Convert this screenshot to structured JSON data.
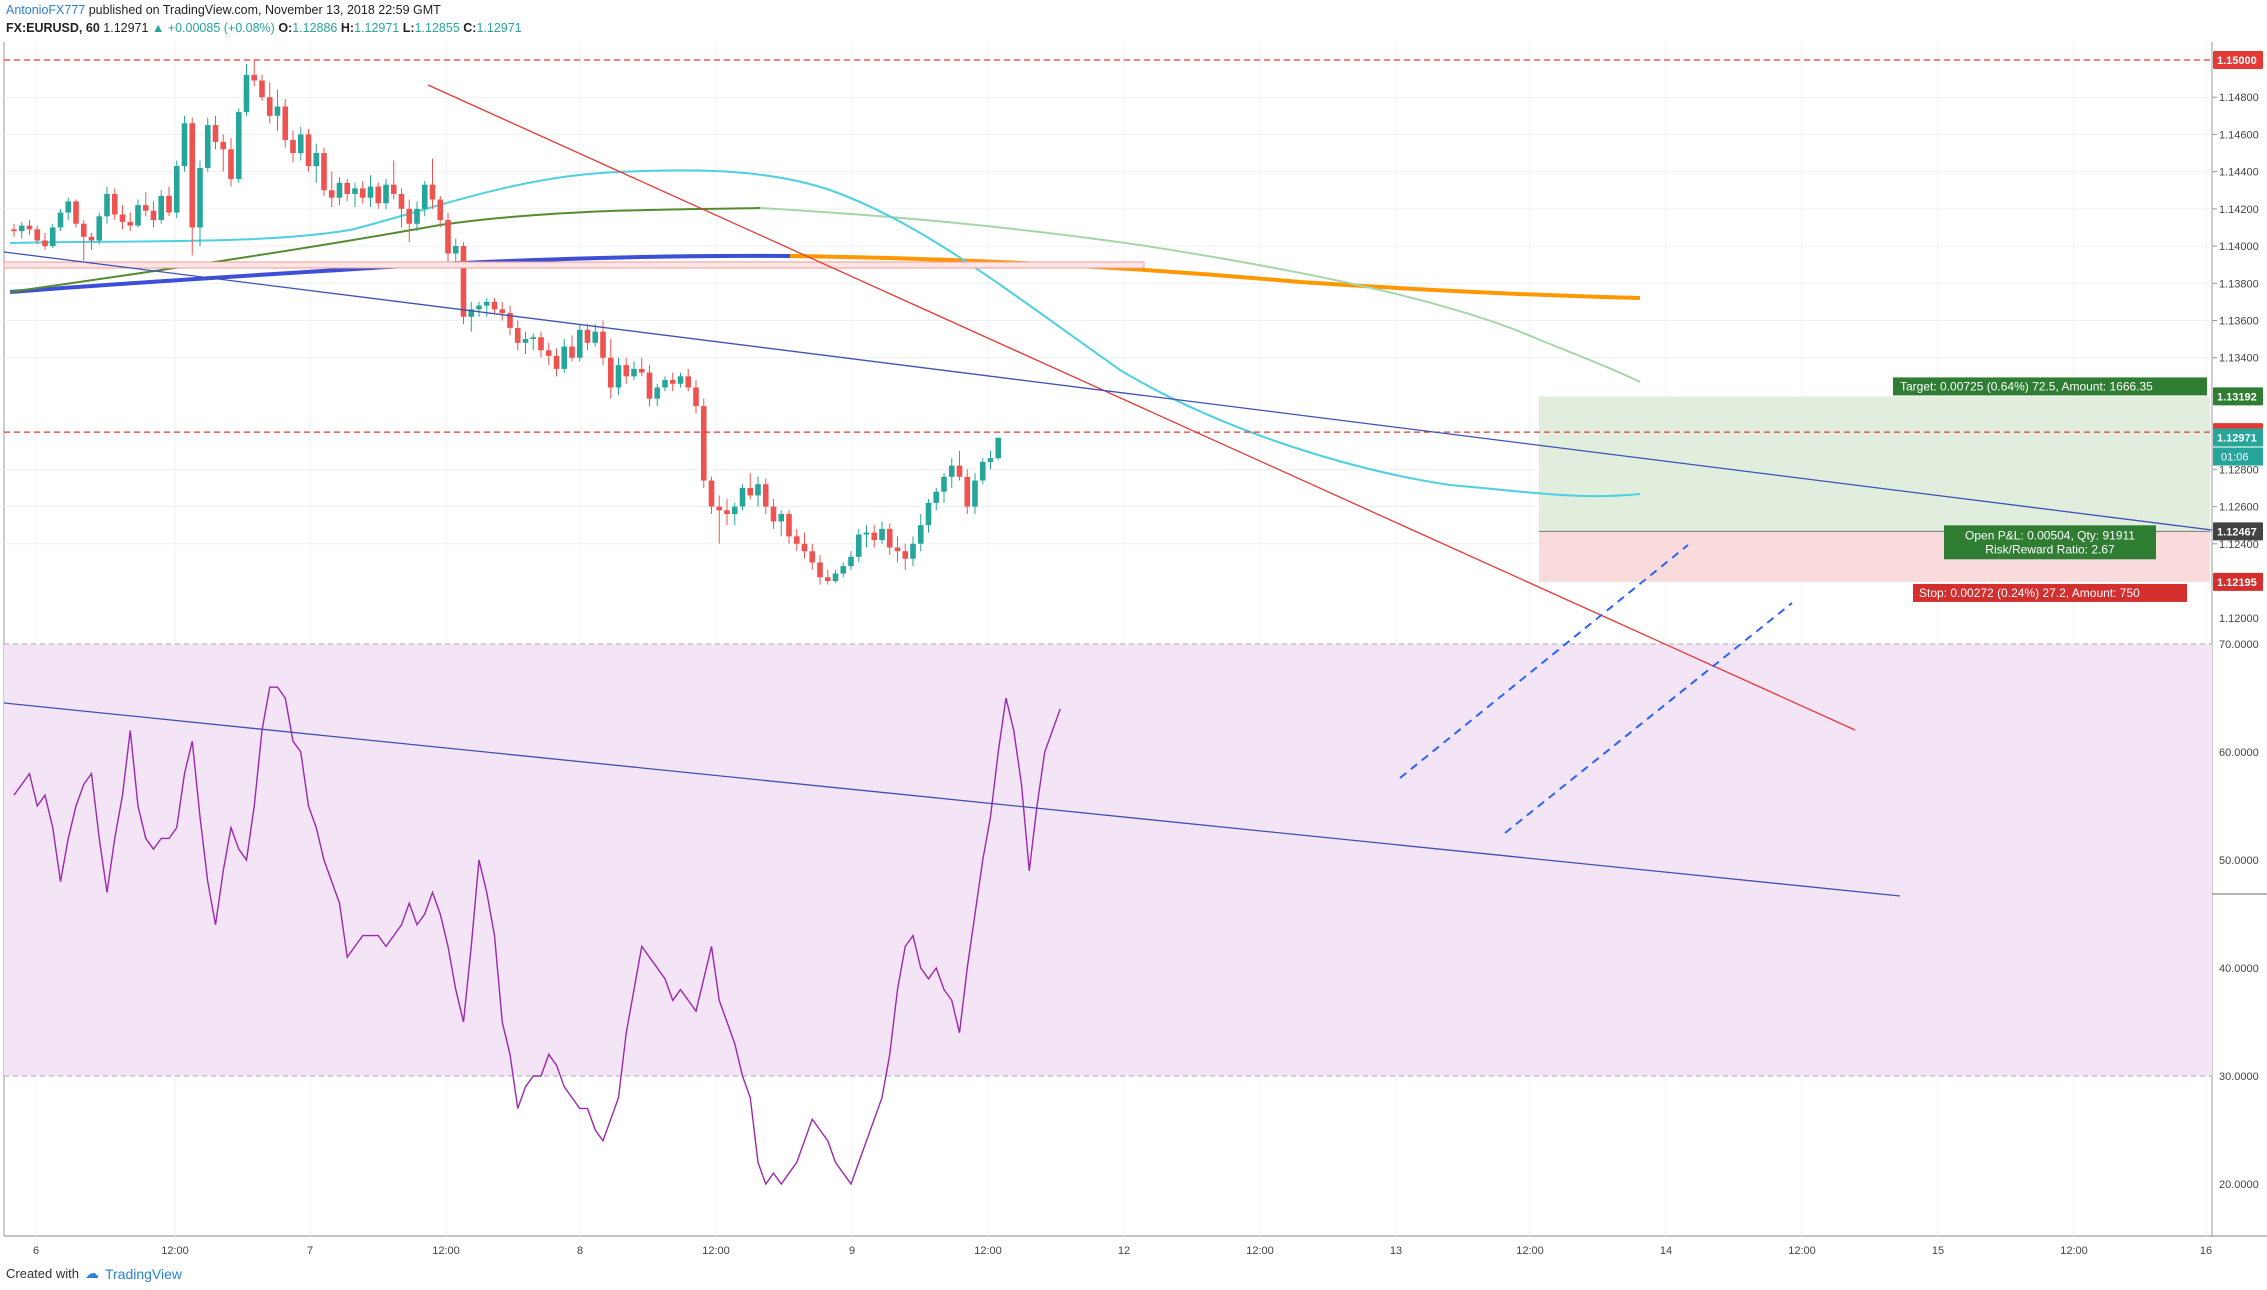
{
  "header": {
    "author": "AntonioFX777",
    "published": "published on TradingView.com, November 13, 2018 22:59 GMT",
    "symbol": "FX:EURUSD, 60",
    "last": "1.12971",
    "change_arrow": "▲",
    "change": "+0.00085 (+0.08%)",
    "o_label": "O:",
    "o": "1.12886",
    "h_label": "H:",
    "h": "1.12971",
    "l_label": "L:",
    "l": "1.12855",
    "c_label": "C:",
    "c": "1.12971"
  },
  "price_axis": {
    "ticks": [
      "1.14800",
      "1.14600",
      "1.14400",
      "1.14200",
      "1.14000",
      "1.13800",
      "1.13600",
      "1.13400",
      "1.12800",
      "1.12600",
      "1.12400"
    ],
    "tags": {
      "level_1_15000": "1.15000",
      "target_price": "1.13192",
      "level_1_13000": "1.13000",
      "last_price": "1.12971",
      "countdown": "01:06",
      "entry_price": "1.12467",
      "stop_price": "1.12195"
    },
    "partial_bottom": "1.12000"
  },
  "time_axis": [
    "6",
    "12:00",
    "7",
    "12:00",
    "8",
    "12:00",
    "9",
    "12:00",
    "12",
    "12:00",
    "13",
    "12:00",
    "14",
    "12:00",
    "15",
    "12:00",
    "16"
  ],
  "rsi_axis": [
    "70.0000",
    "60.0000",
    "50.0000",
    "40.0000",
    "30.0000",
    "20.0000"
  ],
  "position": {
    "target_label": "Target: 0.00725 (0.64%) 72.5, Amount: 1666.35",
    "open_pnl": "Open P&L: 0.00504, Qty: 91911",
    "risk_reward": "Risk/Reward Ratio: 2.67",
    "stop_label": "Stop: 0.00272 (0.24%) 27.2, Amount: 750"
  },
  "footer": {
    "created_with": "Created with",
    "brand": "TradingView"
  },
  "colors": {
    "bull": "#26a69a",
    "bear": "#ef5350",
    "resistance": "#e53935",
    "trend_blue": "#3f51b5",
    "ema_cyan": "#4dd0e1",
    "sma_orange": "#ff9800",
    "sma_green": "#a5d6a7",
    "sma_dark": "#558b2f",
    "rsi_line": "#9c27b0",
    "rsi_band": "#f3e5f5",
    "target_zone": "#dcebd8",
    "stop_zone": "#f8d7d7"
  },
  "chart_data": {
    "type": "candlestick",
    "symbol": "FX:EURUSD",
    "interval": "60",
    "y_range": [
      1.1197,
      1.1516
    ],
    "horizontal_levels": [
      1.15,
      1.13
    ],
    "position": {
      "entry": 1.12467,
      "target": 1.13192,
      "stop": 1.12195,
      "last": 1.12971
    },
    "candles_ohlc": [
      [
        1.1409,
        1.1412,
        1.1405,
        1.1408
      ],
      [
        1.1408,
        1.1413,
        1.1404,
        1.1411
      ],
      [
        1.1411,
        1.1414,
        1.1406,
        1.1409
      ],
      [
        1.1409,
        1.1411,
        1.1401,
        1.1403
      ],
      [
        1.1403,
        1.1407,
        1.1398,
        1.14
      ],
      [
        1.14,
        1.1412,
        1.1399,
        1.141
      ],
      [
        1.141,
        1.142,
        1.1408,
        1.1418
      ],
      [
        1.1418,
        1.1426,
        1.1414,
        1.1424
      ],
      [
        1.1424,
        1.1425,
        1.141,
        1.1412
      ],
      [
        1.1412,
        1.1414,
        1.1392,
        1.1405
      ],
      [
        1.1405,
        1.1407,
        1.1398,
        1.1403
      ],
      [
        1.1403,
        1.1418,
        1.1401,
        1.1416
      ],
      [
        1.1416,
        1.1432,
        1.1412,
        1.1428
      ],
      [
        1.1428,
        1.1431,
        1.1414,
        1.1417
      ],
      [
        1.1417,
        1.1422,
        1.1409,
        1.1413
      ],
      [
        1.1413,
        1.1418,
        1.1408,
        1.1411
      ],
      [
        1.1411,
        1.1425,
        1.141,
        1.1422
      ],
      [
        1.1422,
        1.1429,
        1.1416,
        1.1419
      ],
      [
        1.1419,
        1.1424,
        1.141,
        1.1414
      ],
      [
        1.1414,
        1.143,
        1.1412,
        1.1427
      ],
      [
        1.1427,
        1.1432,
        1.1416,
        1.1418
      ],
      [
        1.1418,
        1.1446,
        1.1415,
        1.1443
      ],
      [
        1.1443,
        1.147,
        1.144,
        1.1466
      ],
      [
        1.1466,
        1.1469,
        1.1395,
        1.141
      ],
      [
        1.141,
        1.1446,
        1.14,
        1.1442
      ],
      [
        1.1442,
        1.1469,
        1.144,
        1.1465
      ],
      [
        1.1465,
        1.147,
        1.1452,
        1.1456
      ],
      [
        1.1456,
        1.146,
        1.144,
        1.1452
      ],
      [
        1.1452,
        1.1458,
        1.1432,
        1.1436
      ],
      [
        1.1436,
        1.1474,
        1.1434,
        1.1472
      ],
      [
        1.1472,
        1.1498,
        1.147,
        1.1492
      ],
      [
        1.1492,
        1.15,
        1.1486,
        1.1489
      ],
      [
        1.1489,
        1.1492,
        1.1478,
        1.148
      ],
      [
        1.148,
        1.1488,
        1.1466,
        1.147
      ],
      [
        1.147,
        1.1484,
        1.1462,
        1.1475
      ],
      [
        1.1475,
        1.1479,
        1.1453,
        1.1457
      ],
      [
        1.1457,
        1.1462,
        1.1445,
        1.145
      ],
      [
        1.145,
        1.1464,
        1.1446,
        1.146
      ],
      [
        1.146,
        1.1463,
        1.144,
        1.1443
      ],
      [
        1.1443,
        1.1455,
        1.1434,
        1.145
      ],
      [
        1.145,
        1.1453,
        1.1427,
        1.143
      ],
      [
        1.143,
        1.144,
        1.1421,
        1.1426
      ],
      [
        1.1426,
        1.1437,
        1.1422,
        1.1434
      ],
      [
        1.1434,
        1.1436,
        1.1424,
        1.1428
      ],
      [
        1.1428,
        1.1434,
        1.1421,
        1.1431
      ],
      [
        1.1431,
        1.1435,
        1.1423,
        1.1426
      ],
      [
        1.1426,
        1.1438,
        1.1421,
        1.1432
      ],
      [
        1.1432,
        1.1434,
        1.142,
        1.1423
      ],
      [
        1.1423,
        1.1436,
        1.142,
        1.1433
      ],
      [
        1.1433,
        1.1446,
        1.1425,
        1.1428
      ],
      [
        1.1428,
        1.1431,
        1.141,
        1.142
      ],
      [
        1.142,
        1.1425,
        1.1402,
        1.1412
      ],
      [
        1.1412,
        1.1424,
        1.1408,
        1.142
      ],
      [
        1.142,
        1.1435,
        1.1416,
        1.1433
      ],
      [
        1.1433,
        1.1447,
        1.142,
        1.1425
      ],
      [
        1.1425,
        1.1427,
        1.141,
        1.1414
      ],
      [
        1.1414,
        1.1418,
        1.139,
        1.1396
      ],
      [
        1.1396,
        1.1404,
        1.1388,
        1.14
      ],
      [
        1.14,
        1.1402,
        1.1358,
        1.1362
      ],
      [
        1.1362,
        1.137,
        1.1354,
        1.1366
      ],
      [
        1.1366,
        1.137,
        1.1362,
        1.1368
      ],
      [
        1.1368,
        1.1372,
        1.1362,
        1.137
      ],
      [
        1.137,
        1.1372,
        1.1364,
        1.1366
      ],
      [
        1.1366,
        1.137,
        1.136,
        1.1364
      ],
      [
        1.1364,
        1.1368,
        1.1352,
        1.1356
      ],
      [
        1.1356,
        1.136,
        1.1344,
        1.1348
      ],
      [
        1.1348,
        1.1354,
        1.1342,
        1.135
      ],
      [
        1.135,
        1.1353,
        1.1344,
        1.1351
      ],
      [
        1.1351,
        1.1354,
        1.134,
        1.1344
      ],
      [
        1.1344,
        1.1348,
        1.1336,
        1.1341
      ],
      [
        1.1341,
        1.1345,
        1.133,
        1.1334
      ],
      [
        1.1334,
        1.135,
        1.1332,
        1.1346
      ],
      [
        1.1346,
        1.1352,
        1.1338,
        1.134
      ],
      [
        1.134,
        1.1358,
        1.1338,
        1.1355
      ],
      [
        1.1355,
        1.1358,
        1.1344,
        1.1348
      ],
      [
        1.1348,
        1.1358,
        1.1346,
        1.1354
      ],
      [
        1.1354,
        1.136,
        1.1336,
        1.134
      ],
      [
        1.134,
        1.135,
        1.1318,
        1.1324
      ],
      [
        1.1324,
        1.134,
        1.132,
        1.1336
      ],
      [
        1.1336,
        1.134,
        1.1326,
        1.133
      ],
      [
        1.133,
        1.1338,
        1.1328,
        1.1334
      ],
      [
        1.1334,
        1.134,
        1.133,
        1.1332
      ],
      [
        1.1332,
        1.1336,
        1.1314,
        1.1318
      ],
      [
        1.1318,
        1.1326,
        1.1314,
        1.1324
      ],
      [
        1.1324,
        1.133,
        1.1322,
        1.1328
      ],
      [
        1.1328,
        1.1332,
        1.1322,
        1.1326
      ],
      [
        1.1326,
        1.1332,
        1.1324,
        1.133
      ],
      [
        1.133,
        1.1334,
        1.1322,
        1.1324
      ],
      [
        1.1324,
        1.1328,
        1.131,
        1.1314
      ],
      [
        1.1314,
        1.1318,
        1.127,
        1.1274
      ],
      [
        1.1274,
        1.1276,
        1.1256,
        1.126
      ],
      [
        1.126,
        1.1266,
        1.124,
        1.1258
      ],
      [
        1.1258,
        1.1264,
        1.125,
        1.1256
      ],
      [
        1.1256,
        1.1262,
        1.125,
        1.126
      ],
      [
        1.126,
        1.1272,
        1.1258,
        1.127
      ],
      [
        1.127,
        1.1278,
        1.1264,
        1.1266
      ],
      [
        1.1266,
        1.1276,
        1.126,
        1.1272
      ],
      [
        1.1272,
        1.1275,
        1.1256,
        1.126
      ],
      [
        1.126,
        1.1264,
        1.1248,
        1.1252
      ],
      [
        1.1252,
        1.1258,
        1.1244,
        1.1256
      ],
      [
        1.1256,
        1.1258,
        1.124,
        1.1244
      ],
      [
        1.1244,
        1.1248,
        1.1236,
        1.124
      ],
      [
        1.124,
        1.1246,
        1.1232,
        1.1236
      ],
      [
        1.1236,
        1.124,
        1.1226,
        1.123
      ],
      [
        1.123,
        1.1234,
        1.1218,
        1.1222
      ],
      [
        1.1222,
        1.1226,
        1.1218,
        1.122
      ],
      [
        1.122,
        1.1226,
        1.1219,
        1.1224
      ],
      [
        1.1224,
        1.123,
        1.1222,
        1.1228
      ],
      [
        1.1228,
        1.1236,
        1.1226,
        1.1233
      ],
      [
        1.1233,
        1.1248,
        1.123,
        1.1245
      ],
      [
        1.1245,
        1.125,
        1.1238,
        1.1246
      ],
      [
        1.1246,
        1.125,
        1.1238,
        1.1242
      ],
      [
        1.1242,
        1.1252,
        1.124,
        1.1248
      ],
      [
        1.1248,
        1.1251,
        1.1234,
        1.1238
      ],
      [
        1.1238,
        1.1244,
        1.123,
        1.1236
      ],
      [
        1.1236,
        1.124,
        1.1226,
        1.1232
      ],
      [
        1.1232,
        1.1244,
        1.1228,
        1.124
      ],
      [
        1.124,
        1.1256,
        1.1236,
        1.125
      ],
      [
        1.125,
        1.1264,
        1.1246,
        1.1262
      ],
      [
        1.1262,
        1.127,
        1.1258,
        1.1268
      ],
      [
        1.1268,
        1.1278,
        1.1262,
        1.1276
      ],
      [
        1.1276,
        1.1286,
        1.127,
        1.1282
      ],
      [
        1.1282,
        1.129,
        1.1274,
        1.1276
      ],
      [
        1.1276,
        1.128,
        1.1256,
        1.126
      ],
      [
        1.126,
        1.1278,
        1.1256,
        1.1274
      ],
      [
        1.1274,
        1.1286,
        1.1272,
        1.1284
      ],
      [
        1.1284,
        1.129,
        1.128,
        1.1286
      ],
      [
        1.1286,
        1.1297,
        1.1285,
        1.1297
      ]
    ],
    "rsi": {
      "levels": [
        30,
        50,
        70
      ],
      "y_range": [
        18,
        73
      ],
      "values": [
        56,
        57,
        58,
        55,
        56,
        53,
        48,
        52,
        55,
        57,
        58,
        52,
        47,
        52,
        56,
        62,
        55,
        52,
        51,
        52,
        52,
        53,
        58,
        61,
        54,
        48,
        44,
        49,
        53,
        51,
        50,
        55,
        62,
        66,
        66,
        65,
        61,
        60,
        55,
        53,
        50,
        48,
        46,
        41,
        42,
        43,
        43,
        43,
        42,
        43,
        44,
        46,
        44,
        45,
        47,
        45,
        42,
        38,
        35,
        42,
        50,
        47,
        43,
        35,
        32,
        27,
        29,
        30,
        30,
        32,
        31,
        29,
        28,
        27,
        27,
        25,
        24,
        26,
        28,
        34,
        38,
        42,
        41,
        40,
        39,
        37,
        38,
        37,
        36,
        39,
        42,
        37,
        35,
        33,
        30,
        28,
        22,
        20,
        21,
        20,
        21,
        22,
        24,
        26,
        25,
        24,
        22,
        21,
        20,
        22,
        24,
        26,
        28,
        32,
        38,
        42,
        43,
        40,
        39,
        40,
        38,
        37,
        34,
        40,
        45,
        50,
        54,
        60,
        65,
        62,
        57,
        49,
        55,
        60,
        62,
        64
      ]
    }
  }
}
